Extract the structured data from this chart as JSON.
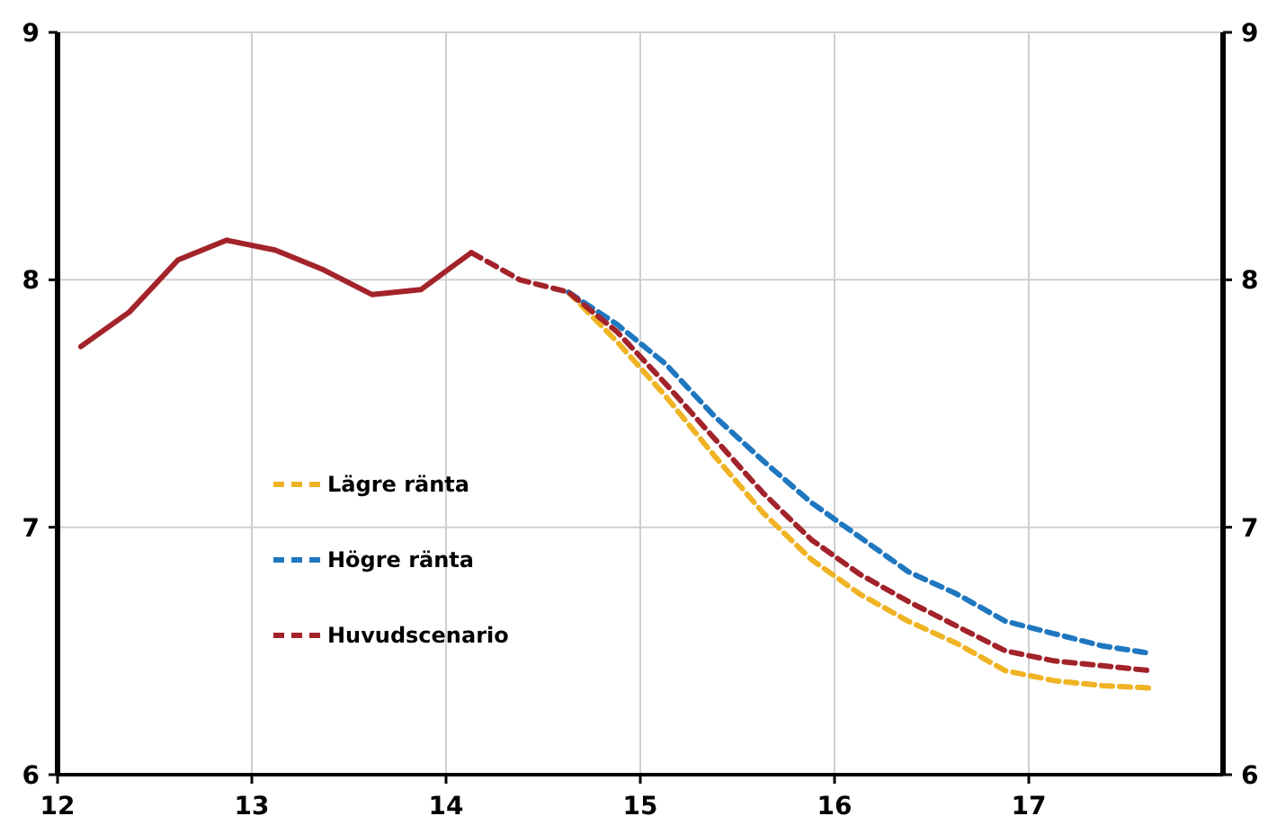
{
  "chart_data": {
    "type": "line",
    "xlim": [
      12,
      18
    ],
    "xticks": [
      12,
      13,
      14,
      15,
      16,
      17
    ],
    "ylim": [
      6,
      9
    ],
    "yticks": [
      6,
      7,
      8,
      9
    ],
    "y2lim": [
      6,
      9
    ],
    "y2ticks": [
      6,
      7,
      8,
      9
    ],
    "grid": true,
    "legend": "left",
    "marker": "none",
    "series": [
      {
        "color": "#a3232b",
        "line_style": "solid",
        "x": [
          12.12,
          12.37,
          12.62,
          12.87,
          13.12,
          13.37,
          13.62,
          13.87,
          14.13
        ],
        "values": [
          7.73,
          7.87,
          8.08,
          8.16,
          8.12,
          8.04,
          7.94,
          7.96,
          8.11
        ]
      },
      {
        "name": "Lägre ränta",
        "color": "#f0b323",
        "line_style": "dashed",
        "x": [
          14.63,
          14.88,
          15.13,
          15.38,
          15.63,
          15.88,
          16.13,
          16.38,
          16.63,
          16.88,
          17.13,
          17.38,
          17.63
        ],
        "values": [
          7.95,
          7.75,
          7.53,
          7.29,
          7.06,
          6.87,
          6.73,
          6.62,
          6.53,
          6.42,
          6.38,
          6.36,
          6.35
        ]
      },
      {
        "name": "Högre ränta",
        "color": "#1f77c0",
        "line_style": "dashed",
        "x": [
          14.63,
          14.88,
          15.13,
          15.38,
          15.63,
          15.88,
          16.13,
          16.38,
          16.63,
          16.88,
          17.13,
          17.38,
          17.63
        ],
        "values": [
          7.95,
          7.82,
          7.66,
          7.45,
          7.27,
          7.1,
          6.96,
          6.82,
          6.73,
          6.62,
          6.57,
          6.52,
          6.49
        ]
      },
      {
        "name": "Huvudscenario",
        "color": "#a3232b",
        "line_style": "dashed",
        "x": [
          14.13,
          14.38,
          14.63,
          14.88,
          15.13,
          15.38,
          15.63,
          15.88,
          16.13,
          16.38,
          16.63,
          16.88,
          17.13,
          17.38,
          17.63
        ],
        "values": [
          8.11,
          8.0,
          7.95,
          7.79,
          7.58,
          7.36,
          7.14,
          6.95,
          6.81,
          6.7,
          6.6,
          6.5,
          6.46,
          6.44,
          6.42
        ]
      }
    ]
  }
}
